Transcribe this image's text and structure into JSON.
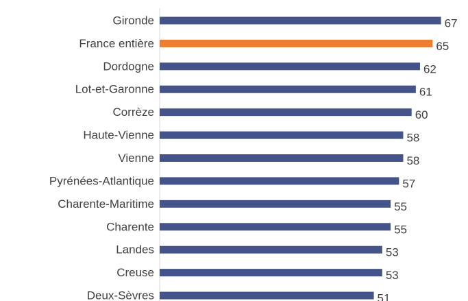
{
  "chart_data": {
    "type": "barh",
    "categories": [
      "Gironde",
      "France entière",
      "Dordogne",
      "Lot-et-Garonne",
      "Corrèze",
      "Haute-Vienne",
      "Vienne",
      "Pyrénées-Atlantique",
      "Charente-Maritime",
      "Charente",
      "Landes",
      "Creuse",
      "Deux-Sèvres"
    ],
    "values": [
      67,
      65,
      62,
      61,
      60,
      58,
      58,
      57,
      55,
      55,
      53,
      53,
      51
    ],
    "colors": [
      "#44548a",
      "#ed7d31",
      "#44548a",
      "#44548a",
      "#44548a",
      "#44548a",
      "#44548a",
      "#44548a",
      "#44548a",
      "#44548a",
      "#44548a",
      "#44548a",
      "#44548a"
    ],
    "xlim": [
      0,
      70
    ]
  }
}
